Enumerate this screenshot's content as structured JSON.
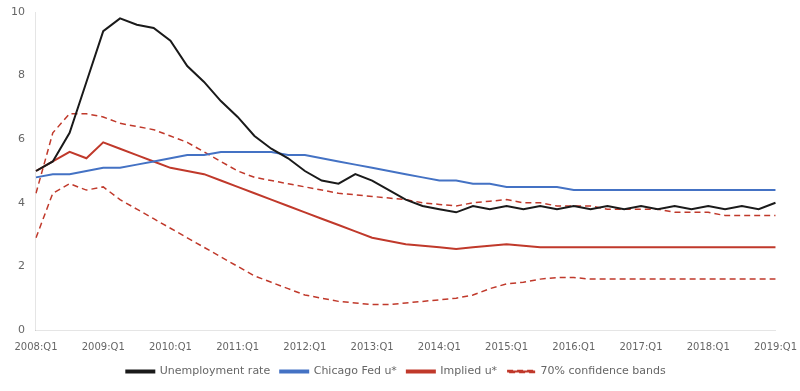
{
  "chart_data": {
    "type": "line",
    "categories": [
      "2008:Q1",
      null,
      null,
      null,
      "2009:Q1",
      null,
      null,
      null,
      "2010:Q1",
      null,
      null,
      null,
      "2011:Q1",
      null,
      null,
      null,
      "2012:Q1",
      null,
      null,
      null,
      "2013:Q1",
      null,
      null,
      null,
      "2014:Q1",
      null,
      null,
      null,
      "2015:Q1",
      null,
      null,
      null,
      "2016:Q1",
      null,
      null,
      null,
      "2017:Q1",
      null,
      null,
      null,
      "2018:Q1",
      null,
      null,
      null,
      "2019:Q1"
    ],
    "series": [
      {
        "name": "Unemployment rate",
        "color": "#1a1a1a",
        "line_style": "solid",
        "values": [
          5.0,
          5.3,
          6.2,
          7.8,
          9.4,
          9.8,
          9.6,
          9.5,
          9.1,
          8.3,
          7.8,
          7.2,
          6.7,
          6.1,
          5.7,
          5.4,
          5.0,
          4.7,
          4.6,
          4.9,
          4.7,
          4.4,
          4.1,
          3.9,
          3.8,
          3.7,
          3.9,
          3.8,
          3.9,
          3.8,
          3.9,
          3.8,
          3.9,
          3.8,
          3.9,
          3.8,
          3.9,
          3.8,
          3.9,
          3.8,
          3.9,
          3.8,
          3.9,
          3.8,
          4.0
        ]
      },
      {
        "name": "Chicago Fed u*",
        "color": "#4472c4",
        "line_style": "solid",
        "values": [
          4.8,
          4.9,
          4.9,
          5.0,
          5.1,
          5.1,
          5.2,
          5.3,
          5.4,
          5.5,
          5.5,
          5.6,
          5.6,
          5.6,
          5.6,
          5.5,
          5.5,
          5.4,
          5.3,
          5.2,
          5.1,
          5.0,
          4.9,
          4.8,
          4.7,
          4.7,
          4.6,
          4.6,
          4.5,
          4.5,
          4.5,
          4.5,
          4.4,
          4.4,
          4.4,
          4.4,
          4.4,
          4.4,
          4.4,
          4.4,
          4.4,
          4.4,
          4.4,
          4.4,
          4.4
        ]
      },
      {
        "name": "Implied u*",
        "color": "#c0392b",
        "line_style": "solid",
        "values": [
          5.0,
          5.3,
          5.6,
          5.4,
          5.9,
          5.7,
          5.5,
          5.3,
          5.1,
          5.0,
          4.9,
          4.7,
          4.5,
          4.3,
          4.1,
          3.9,
          3.7,
          3.5,
          3.3,
          3.1,
          2.9,
          2.8,
          2.7,
          2.65,
          2.6,
          2.55,
          2.6,
          2.65,
          2.7,
          2.65,
          2.6,
          2.6,
          2.6,
          2.6,
          2.6,
          2.6,
          2.6,
          2.6,
          2.6,
          2.6,
          2.6,
          2.6,
          2.6,
          2.6,
          2.6
        ]
      },
      {
        "name": "70% confidence bands",
        "color": "#c0392b",
        "line_style": "dashed",
        "values": [
          4.3,
          6.2,
          6.8,
          6.8,
          6.7,
          6.5,
          6.4,
          6.3,
          6.1,
          5.9,
          5.6,
          5.3,
          5.0,
          4.8,
          4.7,
          4.6,
          4.5,
          4.4,
          4.3,
          4.25,
          4.2,
          4.15,
          4.1,
          4.0,
          3.95,
          3.9,
          4.0,
          4.05,
          4.1,
          4.0,
          4.0,
          3.9,
          3.9,
          3.9,
          3.8,
          3.8,
          3.8,
          3.8,
          3.7,
          3.7,
          3.7,
          3.6,
          3.6,
          3.6,
          3.6
        ]
      },
      {
        "name": "70% confidence bands",
        "color": "#c0392b",
        "line_style": "dashed",
        "values": [
          2.9,
          4.3,
          4.6,
          4.4,
          4.5,
          4.1,
          3.8,
          3.5,
          3.2,
          2.9,
          2.6,
          2.3,
          2.0,
          1.7,
          1.5,
          1.3,
          1.1,
          1.0,
          0.9,
          0.85,
          0.8,
          0.8,
          0.85,
          0.9,
          0.95,
          1.0,
          1.1,
          1.3,
          1.45,
          1.5,
          1.6,
          1.65,
          1.65,
          1.6,
          1.6,
          1.6,
          1.6,
          1.6,
          1.6,
          1.6,
          1.6,
          1.6,
          1.6,
          1.6,
          1.6
        ]
      }
    ],
    "ylim": [
      0,
      10
    ],
    "yticks": [
      0,
      2,
      4,
      6,
      8,
      10
    ],
    "grid": false,
    "legend": "bottom"
  }
}
